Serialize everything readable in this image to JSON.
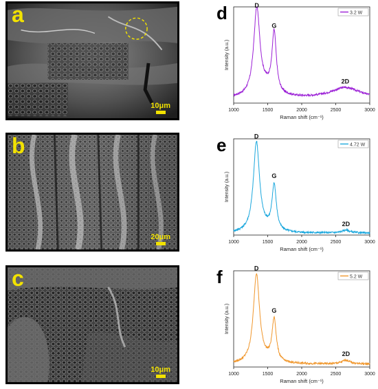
{
  "sem_panels": [
    {
      "letter": "a",
      "scale_label": "10μm"
    },
    {
      "letter": "b",
      "scale_label": "20μm"
    },
    {
      "letter": "c",
      "scale_label": "10μm"
    }
  ],
  "colors": {
    "a": "#9b1fd6",
    "b": "#1aa7dd",
    "c": "#f0962b",
    "scale": "#f2e200"
  },
  "chart_data": [
    {
      "type": "line",
      "panel": "d",
      "legend": "3.2 W",
      "color": "#9b1fd6",
      "xlabel": "Raman shift (cm⁻¹)",
      "ylabel": "Intensity (a.u.)",
      "xlim": [
        1000,
        3000
      ],
      "xticks": [
        1000,
        1500,
        2000,
        2500,
        3000
      ],
      "peaks": [
        {
          "label": "D",
          "x": 1340,
          "y": 0.95
        },
        {
          "label": "G",
          "x": 1595,
          "y": 0.74
        },
        {
          "label": "2D",
          "x": 2640,
          "y": 0.16
        }
      ],
      "baseline": 0.05
    },
    {
      "type": "line",
      "panel": "e",
      "legend": "4.72 W",
      "color": "#1aa7dd",
      "xlabel": "Raman shift (cm⁻¹)",
      "ylabel": "Intensity (a.u.)",
      "xlim": [
        1000,
        3000
      ],
      "xticks": [
        1000,
        1500,
        2000,
        2500,
        3000
      ],
      "peaks": [
        {
          "label": "D",
          "x": 1335,
          "y": 0.96
        },
        {
          "label": "G",
          "x": 1595,
          "y": 0.55
        },
        {
          "label": "2D",
          "x": 2650,
          "y": 0.05
        }
      ],
      "baseline": 0.02
    },
    {
      "type": "line",
      "panel": "f",
      "legend": "5.2 W",
      "color": "#f0962b",
      "xlabel": "Raman shift (cm⁻¹)",
      "ylabel": "Intensity (a.u.)",
      "xlim": [
        1000,
        3000
      ],
      "xticks": [
        1000,
        1500,
        2000,
        2500,
        3000
      ],
      "peaks": [
        {
          "label": "D",
          "x": 1335,
          "y": 0.96
        },
        {
          "label": "G",
          "x": 1595,
          "y": 0.52
        },
        {
          "label": "2D",
          "x": 2650,
          "y": 0.07
        }
      ],
      "baseline": 0.03
    }
  ]
}
